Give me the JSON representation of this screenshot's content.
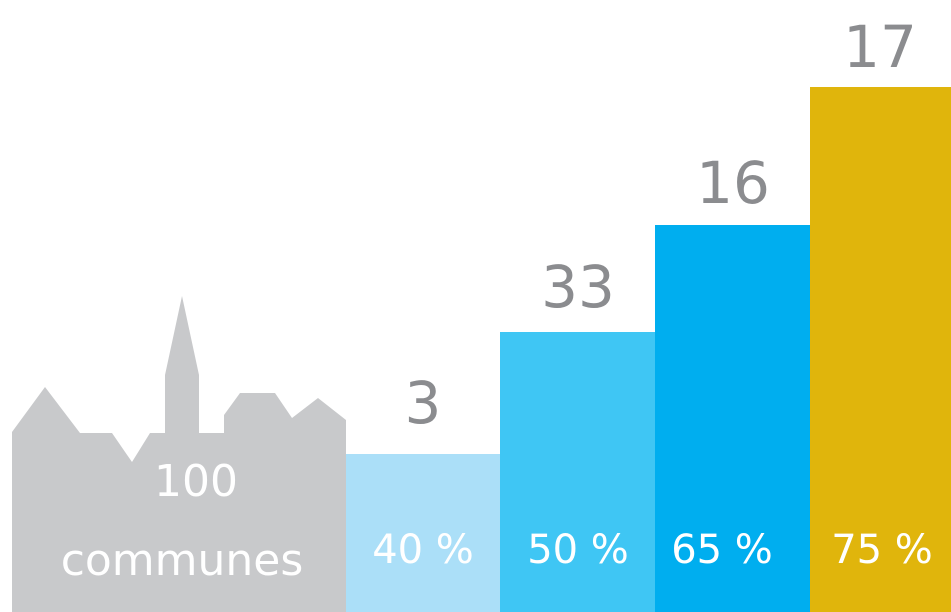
{
  "town": {
    "count": 100,
    "label": "communes"
  },
  "bars": [
    {
      "value": 3,
      "label": "40 %"
    },
    {
      "value": 33,
      "label": "50 %"
    },
    {
      "value": 16,
      "label": "65 %"
    },
    {
      "value": 17,
      "label": "75 %"
    }
  ]
}
